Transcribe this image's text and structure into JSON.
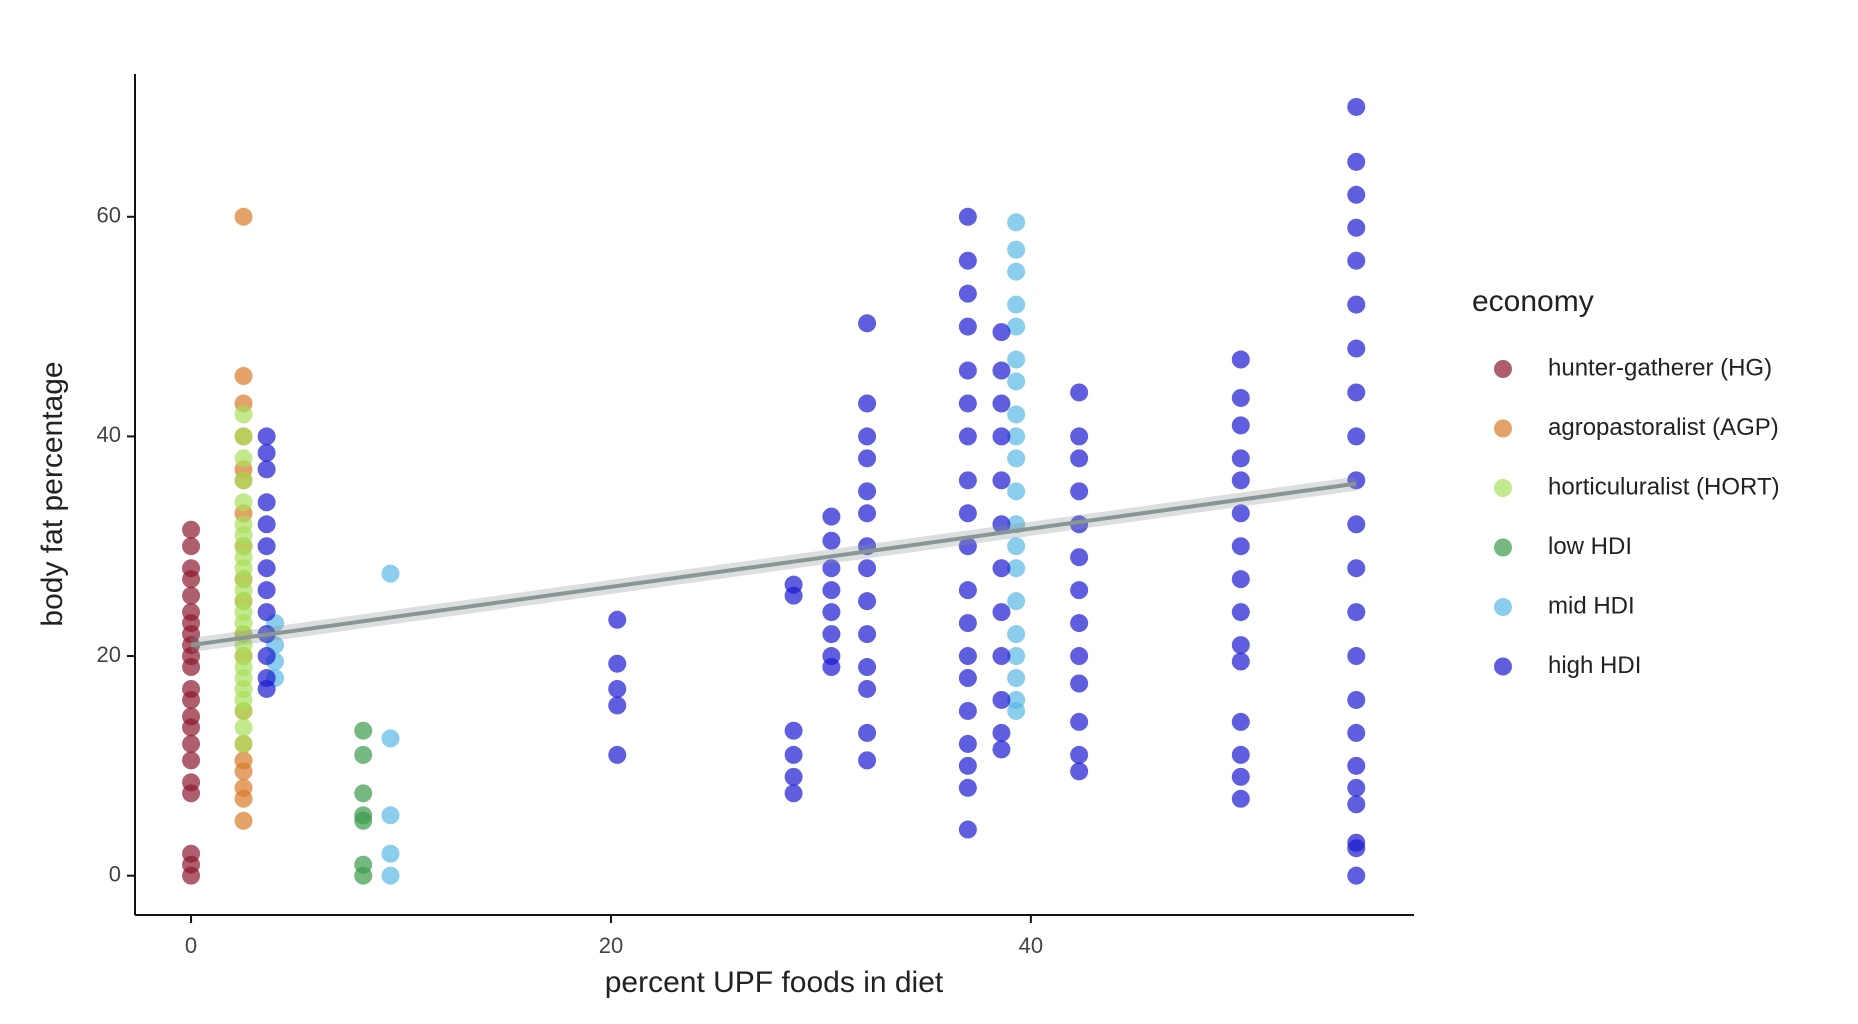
{
  "chart_data": {
    "type": "scatter",
    "x_label": "percent UPF foods in diet",
    "y_label": "body fat percentage",
    "xlim": [
      -2.67,
      58.25
    ],
    "ylim": [
      -3.58,
      73.0
    ],
    "xticks": [
      0,
      20,
      40
    ],
    "yticks": [
      0,
      20,
      40,
      60
    ],
    "legend_title": "economy",
    "legend": "right",
    "series": [
      {
        "name": "hunter-gatherer (HG)",
        "color": "#8b1a2e",
        "x": [
          0,
          0,
          0,
          0,
          0,
          0,
          0,
          0,
          0,
          0,
          0,
          0,
          0,
          0,
          0,
          0,
          0,
          0,
          0,
          0,
          0,
          0
        ],
        "values": [
          0,
          1,
          2,
          7.5,
          8.5,
          10.5,
          12,
          13.5,
          14.5,
          16,
          17,
          19,
          20,
          21,
          22,
          23,
          24,
          25.5,
          27,
          28,
          30,
          31.5
        ]
      },
      {
        "name": "agropastoralist (AGP)",
        "color": "#d97b2a",
        "x": [
          2.5,
          2.5,
          2.5,
          2.5,
          2.5,
          2.5,
          2.5,
          2.5,
          2.5,
          2.5,
          2.5,
          2.5,
          2.5,
          2.5,
          2.5,
          2.5,
          2.5,
          2.5,
          2.5
        ],
        "values": [
          5,
          7,
          8,
          9.5,
          10.5,
          12,
          15,
          20,
          22,
          25,
          27,
          30,
          33,
          36,
          37,
          40,
          43,
          45.5,
          60
        ]
      },
      {
        "name": "horticuluralist (HORT)",
        "color": "#a8e05a",
        "x": [
          2.5,
          2.5,
          2.5,
          2.5,
          2.5,
          2.5,
          2.5,
          2.5,
          2.5,
          2.5,
          2.5,
          2.5,
          2.5,
          2.5,
          2.5,
          2.5,
          2.5,
          2.5,
          2.5,
          2.5,
          2.5,
          2.5,
          2.5,
          2.5,
          2.5
        ],
        "values": [
          12,
          13.5,
          15,
          16,
          17,
          18,
          19,
          20,
          21,
          22,
          23,
          24,
          25,
          26,
          27,
          28,
          29,
          30,
          31,
          32,
          34,
          36,
          38,
          40,
          42
        ]
      },
      {
        "name": "low HDI",
        "color": "#3a9a4a",
        "x": [
          8.2,
          8.2,
          8.2,
          8.2,
          8.2,
          8.2,
          8.2
        ],
        "values": [
          0,
          1,
          5,
          5.5,
          7.5,
          11,
          13.2
        ]
      },
      {
        "name": "mid HDI",
        "color": "#5ab8e6",
        "x": [
          9.5,
          9.5,
          9.5,
          9.5,
          9.5,
          4,
          4,
          4,
          4,
          39.3,
          39.3,
          39.3,
          39.3,
          39.3,
          39.3,
          39.3,
          39.3,
          39.3,
          39.3,
          39.3,
          39.3,
          39.3,
          39.3,
          39.3,
          39.3,
          39.3,
          39.3,
          39.3,
          39.3
        ],
        "values": [
          0,
          2,
          5.5,
          12.5,
          27.5,
          18,
          19.5,
          21,
          23,
          15,
          16,
          18,
          20,
          22,
          25,
          28,
          30,
          32,
          35,
          38,
          40,
          42,
          45,
          47,
          50,
          52,
          55,
          57,
          59.5
        ]
      },
      {
        "name": "high HDI",
        "color": "#1a1ad0",
        "x": [
          3.6,
          3.6,
          3.6,
          3.6,
          3.6,
          3.6,
          3.6,
          3.6,
          3.6,
          3.6,
          3.6,
          3.6,
          3.6,
          20.3,
          20.3,
          20.3,
          20.3,
          20.3,
          28.7,
          28.7,
          28.7,
          28.7,
          28.7,
          28.7,
          30.5,
          30.5,
          30.5,
          30.5,
          30.5,
          30.5,
          30.5,
          30.5,
          32.2,
          32.2,
          32.2,
          32.2,
          32.2,
          32.2,
          32.2,
          32.2,
          32.2,
          32.2,
          32.2,
          32.2,
          32.2,
          32.2,
          37,
          37,
          37,
          37,
          37,
          37,
          37,
          37,
          37,
          37,
          37,
          37,
          37,
          37,
          37,
          37,
          37,
          37,
          37,
          38.6,
          38.6,
          38.6,
          38.6,
          38.6,
          38.6,
          38.6,
          38.6,
          38.6,
          38.6,
          38.6,
          38.6,
          42.3,
          42.3,
          42.3,
          42.3,
          42.3,
          42.3,
          42.3,
          42.3,
          42.3,
          42.3,
          42.3,
          42.3,
          42.3,
          50,
          50,
          50,
          50,
          50,
          50,
          50,
          50,
          50,
          50,
          50,
          50,
          50,
          50,
          50,
          55.5,
          55.5,
          55.5,
          55.5,
          55.5,
          55.5,
          55.5,
          55.5,
          55.5,
          55.5,
          55.5,
          55.5,
          55.5,
          55.5,
          55.5,
          55.5,
          55.5,
          55.5,
          55.5,
          55.5,
          55.5,
          55.5
        ],
        "values": [
          17,
          18,
          20,
          22,
          24,
          26,
          28,
          30,
          32,
          34,
          37,
          38.5,
          40,
          11,
          15.5,
          17,
          19.3,
          23.3,
          7.5,
          9,
          11,
          13.2,
          25.5,
          26.5,
          19,
          20,
          22,
          24,
          26,
          28,
          30.5,
          32.7,
          10.5,
          13,
          17,
          19,
          22,
          25,
          28,
          30,
          33,
          35,
          38,
          40,
          43,
          50.3,
          4.2,
          8,
          10,
          12,
          15,
          18,
          20,
          23,
          26,
          30,
          33,
          36,
          40,
          43,
          46,
          50,
          53,
          56,
          60,
          11.5,
          13,
          16,
          20,
          24,
          28,
          32,
          36,
          40,
          43,
          46,
          49.5,
          9.5,
          11,
          14,
          17.5,
          20,
          23,
          26,
          29,
          32,
          35,
          38,
          40,
          44,
          7,
          9,
          11,
          14,
          19.5,
          21,
          24,
          27,
          30,
          33,
          36,
          38,
          41,
          43.5,
          47,
          0,
          2.5,
          3,
          6.5,
          8,
          10,
          13,
          16,
          20,
          24,
          28,
          32,
          36,
          40,
          44,
          48,
          52,
          56,
          59,
          62,
          65,
          70
        ]
      }
    ],
    "trend": {
      "color": "#8a9696",
      "x": [
        0,
        55.5
      ],
      "values": [
        21,
        35.7
      ]
    }
  }
}
